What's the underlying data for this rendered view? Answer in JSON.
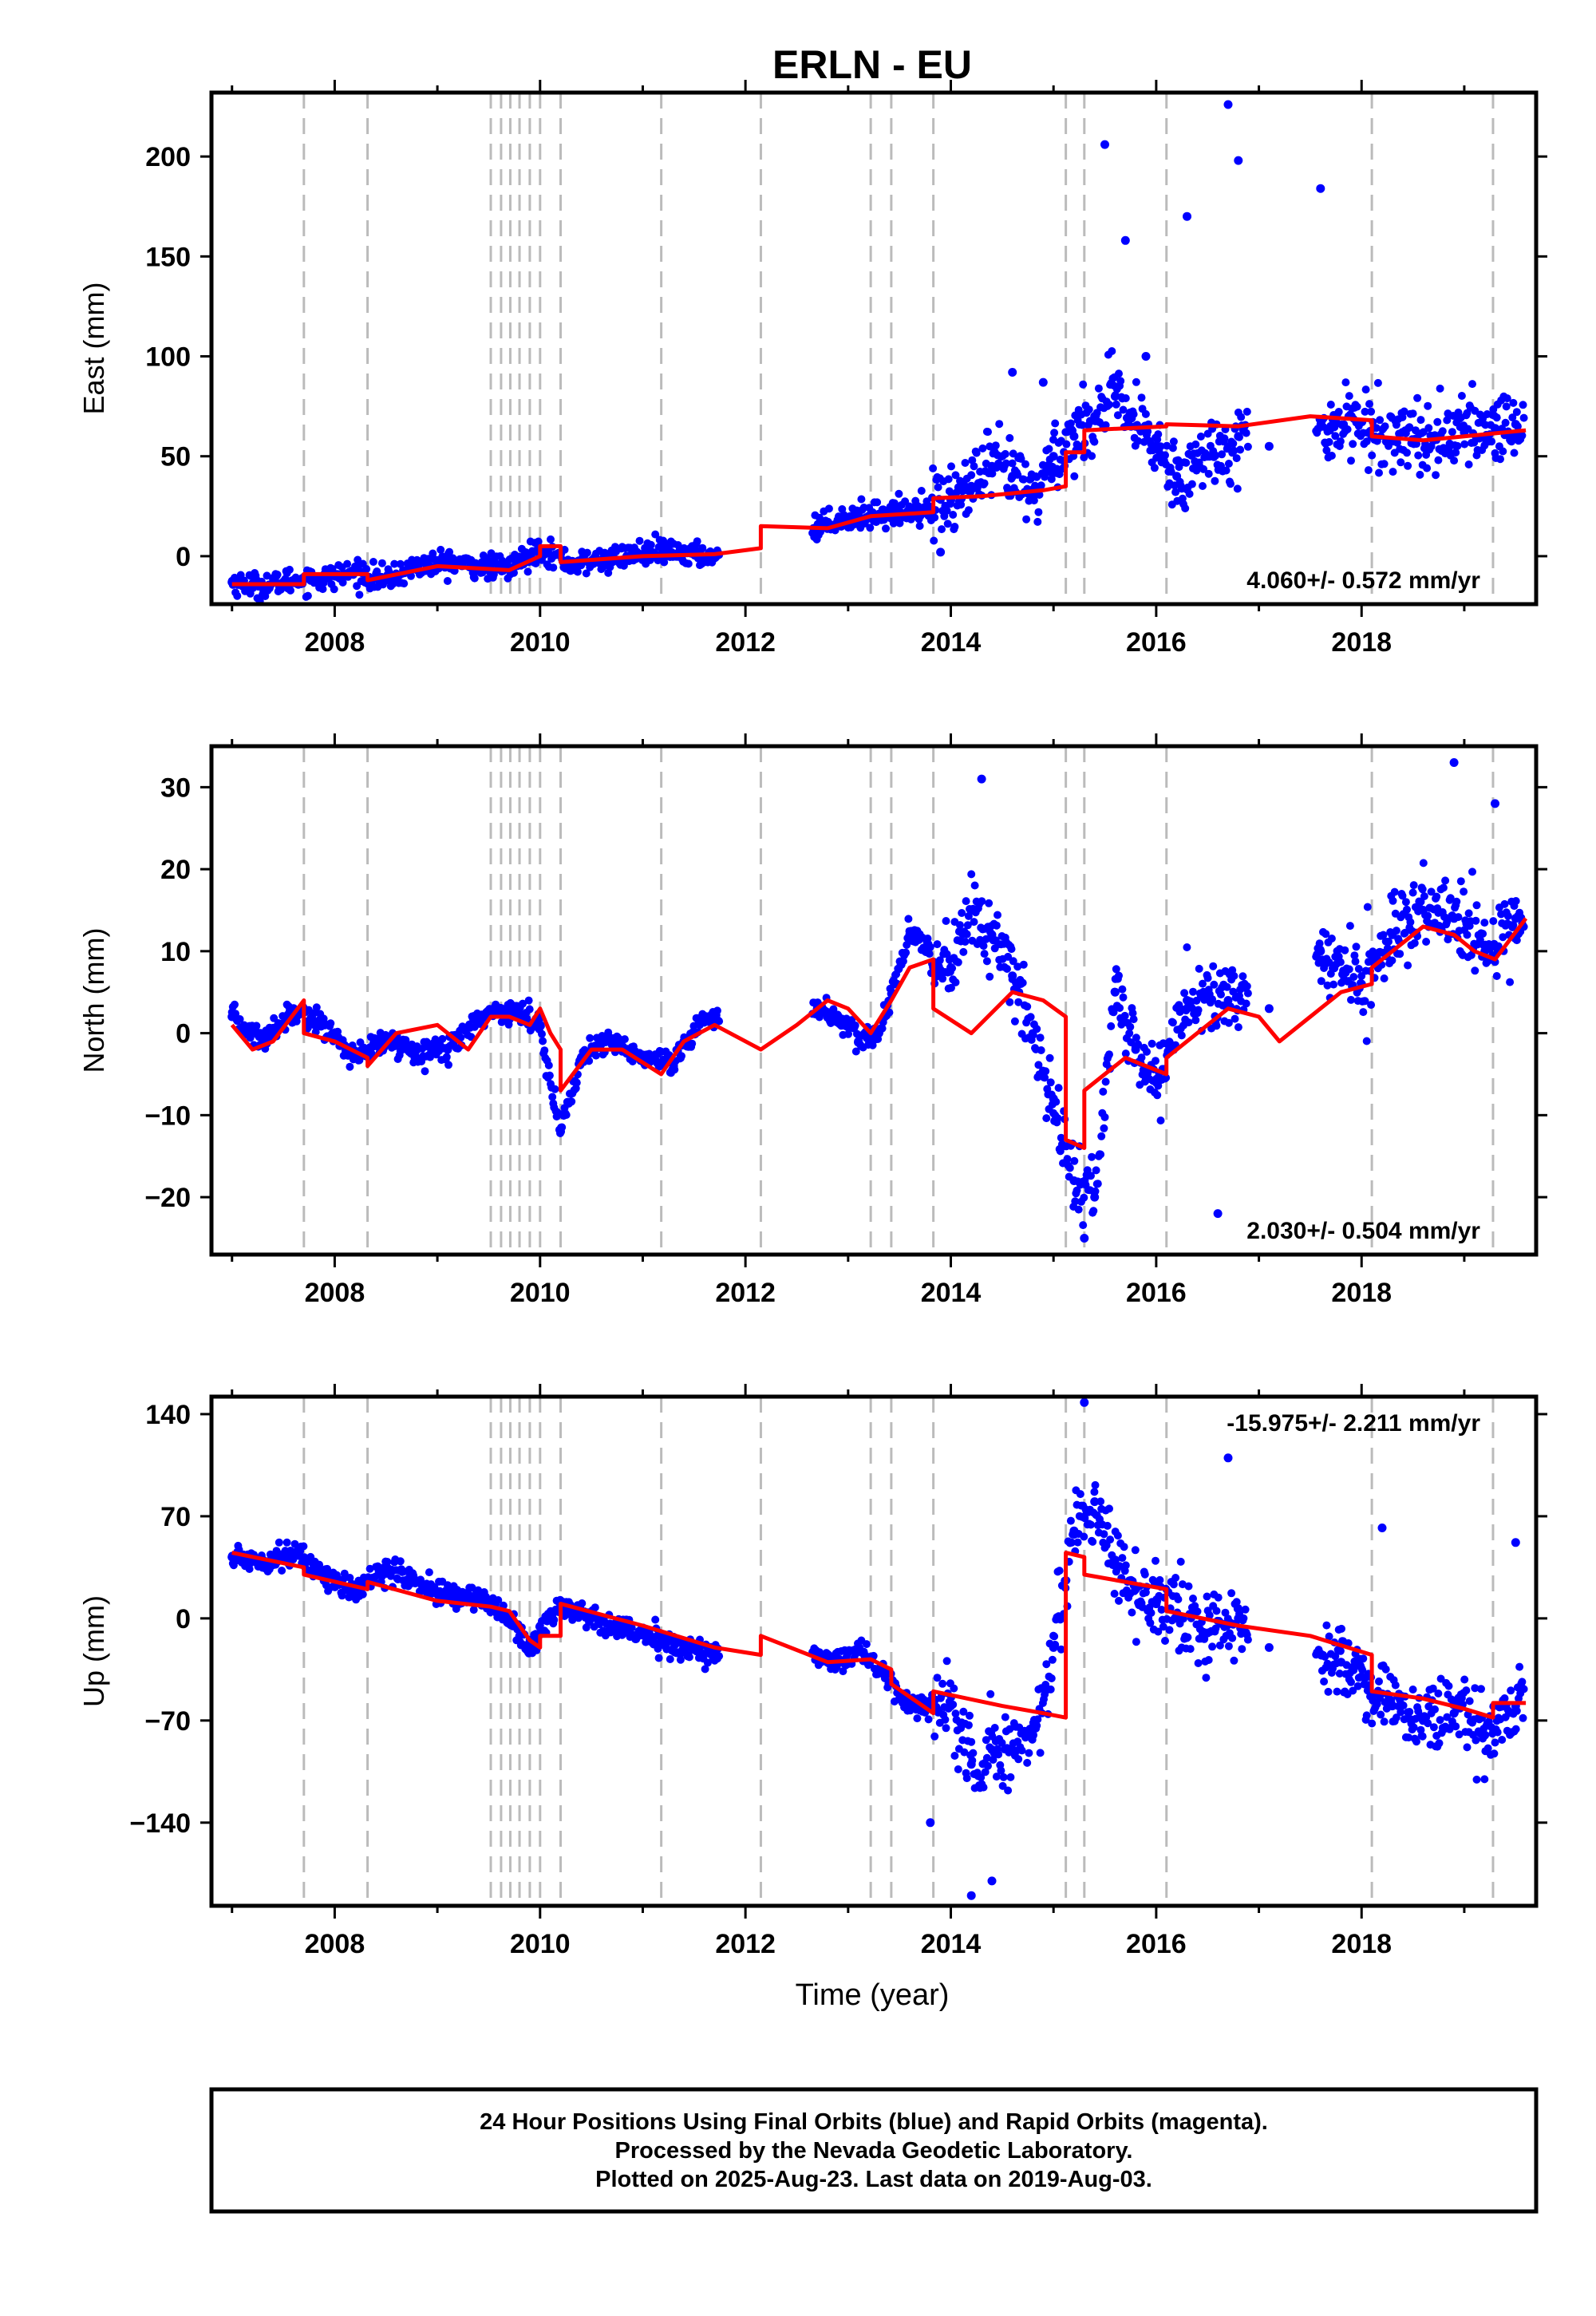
{
  "title": "ERLN - EU",
  "x_axis": {
    "label": "Time (year)",
    "ticks": [
      "2008",
      "2010",
      "2012",
      "2014",
      "2016",
      "2018"
    ],
    "range": [
      2006.8,
      2019.7
    ]
  },
  "offset_lines": [
    2007.7,
    2008.32,
    2009.52,
    2009.62,
    2009.71,
    2009.8,
    2009.9,
    2010.0,
    2010.2,
    2011.18,
    2012.15,
    2013.22,
    2013.42,
    2013.83,
    2015.12,
    2015.3,
    2016.1,
    2018.1,
    2019.28
  ],
  "colors": {
    "observed": "#0000ff",
    "model": "#ff0000",
    "offset_line": "#bbbbbb"
  },
  "footer": {
    "lines": [
      "24 Hour Positions Using Final Orbits (blue) and Rapid Orbits (magenta).",
      "Processed by the Nevada Geodetic Laboratory.",
      "Plotted on 2025-Aug-23. Last data on 2019-Aug-03."
    ]
  },
  "chart_data": [
    {
      "type": "scatter",
      "title": "",
      "ylabel": "East (mm)",
      "ylim": [
        -24,
        232
      ],
      "yticks": [
        0,
        50,
        100,
        150,
        200
      ],
      "ytick_labels": [
        "0",
        "50",
        "100",
        "150",
        "200"
      ],
      "annotation": "4.060+/- 0.572 mm/yr",
      "annotation_position": "bottom-right",
      "series": [
        {
          "name": "observed",
          "kind": "points",
          "x": [
            2007.0,
            2007.3,
            2007.6,
            2007.9,
            2008.2,
            2008.5,
            2008.8,
            2009.1,
            2009.4,
            2009.7,
            2010.0,
            2010.3,
            2010.6,
            2010.9,
            2011.2,
            2011.5,
            2011.7,
            2012.7,
            2012.9,
            2013.1,
            2013.3,
            2013.5,
            2013.7,
            2014.0,
            2014.2,
            2014.4,
            2014.6,
            2014.8,
            2015.0,
            2015.2,
            2015.4,
            2015.6,
            2015.8,
            2016.0,
            2016.2,
            2016.5,
            2016.8,
            2017.1,
            2017.7,
            2017.9,
            2018.1,
            2018.4,
            2018.7,
            2019.0,
            2019.3,
            2019.5,
            2015.5,
            2015.7,
            2016.7,
            2016.8,
            2017.6,
            2016.3,
            2014.6,
            2014.9,
            2015.9,
            2013.9
          ],
          "y": [
            -13,
            -15,
            -12,
            -11,
            -8,
            -12,
            -5,
            -3,
            -5,
            -6,
            4,
            -4,
            -2,
            1,
            2,
            1,
            0,
            15,
            18,
            20,
            21,
            22,
            24,
            28,
            35,
            45,
            40,
            30,
            50,
            60,
            70,
            80,
            65,
            55,
            40,
            50,
            60,
            55,
            65,
            70,
            60,
            62,
            58,
            62,
            64,
            66,
            206,
            158,
            226,
            198,
            184,
            170,
            92,
            87,
            100,
            2
          ]
        },
        {
          "name": "model",
          "kind": "line",
          "x": [
            2007.0,
            2007.7,
            2007.7,
            2008.32,
            2008.32,
            2009.0,
            2009.7,
            2010.0,
            2010.0,
            2010.2,
            2010.2,
            2011.0,
            2011.7,
            2012.15,
            2012.15,
            2012.8,
            2013.22,
            2013.83,
            2013.83,
            2014.3,
            2014.9,
            2015.12,
            2015.12,
            2015.3,
            2015.3,
            2016.1,
            2016.1,
            2016.8,
            2017.5,
            2018.1,
            2018.1,
            2018.6,
            2019.0,
            2019.6
          ],
          "y": [
            -14,
            -14,
            -9,
            -9,
            -12,
            -5,
            -7,
            0,
            5,
            5,
            -3,
            0,
            1,
            4,
            15,
            14,
            20,
            22,
            29,
            30,
            33,
            35,
            52,
            52,
            63,
            65,
            66,
            65,
            70,
            68,
            60,
            58,
            60,
            63
          ]
        }
      ]
    },
    {
      "type": "scatter",
      "title": "",
      "ylabel": "North (mm)",
      "ylim": [
        -27,
        35
      ],
      "yticks": [
        -20,
        -10,
        0,
        10,
        20,
        30
      ],
      "ytick_labels": [
        "−20",
        "−10",
        "0",
        "10",
        "20",
        "30"
      ],
      "annotation": "2.030+/- 0.504 mm/yr",
      "annotation_position": "bottom-right",
      "series": [
        {
          "name": "observed",
          "kind": "points",
          "x": [
            2007.0,
            2007.3,
            2007.6,
            2007.9,
            2008.2,
            2008.5,
            2008.8,
            2009.1,
            2009.4,
            2009.7,
            2010.0,
            2010.2,
            2010.4,
            2010.7,
            2011.0,
            2011.3,
            2011.6,
            2012.7,
            2012.9,
            2013.1,
            2013.3,
            2013.6,
            2014.0,
            2014.2,
            2014.4,
            2014.6,
            2015.0,
            2015.2,
            2015.4,
            2015.6,
            2015.8,
            2016.0,
            2016.3,
            2016.7,
            2017.1,
            2017.6,
            2018.0,
            2018.3,
            2018.6,
            2018.9,
            2019.2,
            2019.5,
            2014.3,
            2018.9,
            2019.3,
            2015.3,
            2016.6
          ],
          "y": [
            2,
            -1,
            3,
            1,
            -3,
            -1,
            -2,
            -2,
            2,
            3,
            1,
            -12,
            -3,
            -1,
            -3,
            -4,
            2,
            3,
            2,
            -1,
            0,
            12,
            8,
            15,
            12,
            7,
            -8,
            -18,
            -20,
            5,
            -2,
            -6,
            4,
            4,
            3,
            10,
            6,
            12,
            15,
            14,
            10,
            14,
            31,
            33,
            28,
            -25,
            -22
          ]
        },
        {
          "name": "model",
          "kind": "line",
          "x": [
            2007.0,
            2007.2,
            2007.4,
            2007.7,
            2007.7,
            2008.0,
            2008.32,
            2008.32,
            2008.6,
            2009.0,
            2009.3,
            2009.52,
            2009.7,
            2009.9,
            2010.0,
            2010.1,
            2010.2,
            2010.2,
            2010.5,
            2010.8,
            2011.18,
            2011.4,
            2011.7,
            2012.15,
            2012.5,
            2012.8,
            2013.0,
            2013.22,
            2013.42,
            2013.6,
            2013.83,
            2013.83,
            2014.2,
            2014.6,
            2014.9,
            2015.12,
            2015.12,
            2015.3,
            2015.3,
            2015.7,
            2016.1,
            2016.1,
            2016.4,
            2016.7,
            2017.0,
            2017.2,
            2017.5,
            2017.8,
            2018.1,
            2018.1,
            2018.3,
            2018.6,
            2018.9,
            2019.1,
            2019.3,
            2019.6
          ],
          "y": [
            1,
            -2,
            -1,
            4,
            0,
            -1,
            -3,
            -4,
            0,
            1,
            -2,
            2,
            2,
            1,
            3,
            0,
            -2,
            -7,
            -2,
            -2,
            -5,
            -1,
            1,
            -2,
            1,
            4,
            3,
            0,
            4,
            8,
            9,
            3,
            0,
            5,
            4,
            2,
            -13,
            -14,
            -7,
            -3,
            -5,
            -3,
            0,
            3,
            2,
            -1,
            2,
            5,
            6,
            8,
            10,
            13,
            12,
            10,
            9,
            14
          ]
        }
      ]
    },
    {
      "type": "scatter",
      "title": "",
      "ylabel": "Up (mm)",
      "ylim": [
        -197,
        152
      ],
      "yticks": [
        -140,
        -70,
        0,
        70,
        140
      ],
      "ytick_labels": [
        "−140",
        "−70",
        "0",
        "70",
        "140"
      ],
      "annotation": "-15.975+/- 2.211 mm/yr",
      "annotation_position": "top-right",
      "series": [
        {
          "name": "observed",
          "kind": "points",
          "x": [
            2007.0,
            2007.3,
            2007.6,
            2007.9,
            2008.2,
            2008.5,
            2008.8,
            2009.1,
            2009.4,
            2009.7,
            2009.9,
            2010.2,
            2010.5,
            2010.8,
            2011.1,
            2011.4,
            2011.7,
            2012.7,
            2012.9,
            2013.1,
            2013.3,
            2013.6,
            2014.0,
            2014.2,
            2014.4,
            2014.6,
            2014.8,
            2015.0,
            2015.2,
            2015.4,
            2015.6,
            2015.8,
            2016.0,
            2016.2,
            2016.5,
            2016.8,
            2017.1,
            2017.8,
            2018.0,
            2018.3,
            2018.6,
            2018.9,
            2019.2,
            2019.5,
            2015.3,
            2014.2,
            2014.4,
            2016.7,
            2018.2,
            2019.5,
            2013.8
          ],
          "y": [
            42,
            40,
            45,
            30,
            18,
            35,
            25,
            15,
            15,
            0,
            -20,
            10,
            0,
            -5,
            -15,
            -20,
            -25,
            -25,
            -30,
            -20,
            -35,
            -60,
            -60,
            -100,
            -90,
            -90,
            -80,
            -20,
            60,
            80,
            40,
            20,
            10,
            0,
            -10,
            0,
            -20,
            -30,
            -40,
            -60,
            -70,
            -65,
            -80,
            -60,
            148,
            -190,
            -180,
            110,
            62,
            52,
            -140
          ]
        },
        {
          "name": "model",
          "kind": "line",
          "x": [
            2007.0,
            2007.7,
            2007.7,
            2008.32,
            2008.32,
            2009.0,
            2009.52,
            2009.7,
            2009.9,
            2010.0,
            2010.0,
            2010.2,
            2010.2,
            2011.0,
            2011.7,
            2012.15,
            2012.15,
            2012.8,
            2013.22,
            2013.42,
            2013.42,
            2013.83,
            2013.83,
            2014.5,
            2014.9,
            2015.12,
            2015.12,
            2015.3,
            2015.3,
            2016.1,
            2016.1,
            2016.8,
            2017.5,
            2018.1,
            2018.1,
            2018.6,
            2019.0,
            2019.28,
            2019.28,
            2019.6
          ],
          "y": [
            45,
            35,
            30,
            20,
            25,
            12,
            8,
            5,
            -15,
            -20,
            -12,
            -12,
            10,
            -5,
            -20,
            -25,
            -12,
            -30,
            -28,
            -35,
            -45,
            -65,
            -50,
            -60,
            -65,
            -68,
            45,
            42,
            30,
            20,
            5,
            -5,
            -12,
            -25,
            -50,
            -55,
            -62,
            -68,
            -58,
            -58
          ]
        }
      ]
    }
  ]
}
